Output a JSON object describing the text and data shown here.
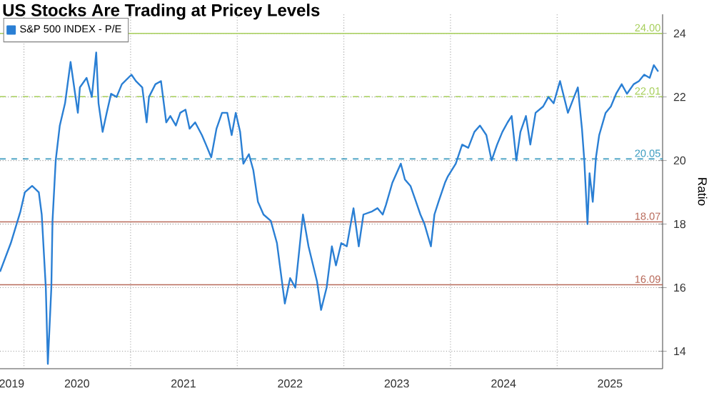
{
  "chart_data": {
    "type": "line",
    "title": "US Stocks Are Trading at Pricey Levels",
    "ylabel": "Ratio",
    "x": [
      "2019-10-11",
      "2019-11-17",
      "2019-12-20",
      "2020-01-04",
      "2020-01-29",
      "2020-02-21",
      "2020-03-02",
      "2020-03-16",
      "2020-03-23",
      "2020-04-04",
      "2020-04-08",
      "2020-04-19",
      "2020-05-03",
      "2020-05-21",
      "2020-06-09",
      "2020-06-23",
      "2020-07-04",
      "2020-07-11",
      "2020-08-03",
      "2020-08-21",
      "2020-09-05",
      "2020-09-13",
      "2020-09-27",
      "2020-10-11",
      "2020-10-26",
      "2020-11-14",
      "2020-12-02",
      "2021-01-04",
      "2021-01-19",
      "2021-02-10",
      "2021-02-25",
      "2021-03-05",
      "2021-03-27",
      "2021-04-15",
      "2021-05-03",
      "2021-05-17",
      "2021-06-05",
      "2021-06-20",
      "2021-07-08",
      "2021-07-22",
      "2021-08-10",
      "2021-09-02",
      "2021-09-16",
      "2021-10-04",
      "2021-10-22",
      "2021-11-10",
      "2021-11-28",
      "2021-12-13",
      "2021-12-27",
      "2022-01-11",
      "2022-01-22",
      "2022-02-10",
      "2022-02-25",
      "2022-03-13",
      "2022-04-01",
      "2022-04-26",
      "2022-05-17",
      "2022-06-13",
      "2022-07-01",
      "2022-07-19",
      "2022-08-14",
      "2022-09-02",
      "2022-10-01",
      "2022-10-15",
      "2022-11-03",
      "2022-11-21",
      "2022-12-05",
      "2022-12-23",
      "2023-01-11",
      "2023-02-03",
      "2023-02-21",
      "2023-03-09",
      "2023-04-08",
      "2023-04-26",
      "2023-05-14",
      "2023-05-25",
      "2023-06-16",
      "2023-07-15",
      "2023-07-29",
      "2023-08-17",
      "2023-09-05",
      "2023-09-20",
      "2023-10-04",
      "2023-10-26",
      "2023-11-07",
      "2023-11-21",
      "2023-12-13",
      "2023-12-23",
      "2024-01-19",
      "2024-02-10",
      "2024-03-02",
      "2024-03-23",
      "2024-04-11",
      "2024-05-03",
      "2024-05-21",
      "2024-06-09",
      "2024-06-27",
      "2024-07-15",
      "2024-07-29",
      "2024-08-14",
      "2024-08-28",
      "2024-09-16",
      "2024-10-01",
      "2024-10-19",
      "2024-11-14",
      "2024-12-02",
      "2024-12-20",
      "2025-01-11",
      "2025-01-19",
      "2025-02-07",
      "2025-02-28",
      "2025-03-13",
      "2025-03-27",
      "2025-04-04",
      "2025-04-15",
      "2025-04-22",
      "2025-05-03",
      "2025-05-14",
      "2025-05-25",
      "2025-06-16",
      "2025-07-04",
      "2025-07-22",
      "2025-08-10",
      "2025-08-28",
      "2025-09-20",
      "2025-10-08",
      "2025-10-26",
      "2025-11-14",
      "2025-11-28",
      "2025-12-13"
    ],
    "series": [
      {
        "name": "S&P 500 INDEX - P/E",
        "color": "#2a7fd4",
        "values": [
          16.5,
          17.4,
          18.4,
          19.0,
          19.2,
          19.0,
          18.3,
          16.0,
          13.6,
          16.0,
          18.1,
          20.0,
          21.1,
          21.8,
          23.1,
          22.2,
          21.5,
          22.3,
          22.6,
          22.0,
          23.4,
          21.8,
          20.9,
          21.5,
          22.1,
          22.0,
          22.4,
          22.7,
          22.5,
          22.3,
          21.2,
          22.0,
          22.4,
          22.5,
          21.2,
          21.4,
          21.1,
          21.5,
          21.6,
          21.0,
          21.2,
          20.8,
          20.5,
          20.1,
          21.0,
          21.5,
          21.5,
          20.8,
          21.5,
          20.9,
          19.9,
          20.2,
          19.7,
          18.7,
          18.3,
          18.1,
          17.4,
          15.5,
          16.3,
          16.0,
          18.3,
          17.3,
          16.2,
          15.3,
          16.0,
          17.3,
          16.7,
          17.4,
          17.3,
          18.5,
          17.3,
          18.3,
          18.4,
          18.5,
          18.3,
          18.6,
          19.3,
          19.9,
          19.4,
          19.2,
          18.7,
          18.3,
          18.0,
          17.3,
          18.3,
          18.7,
          19.3,
          19.5,
          19.9,
          20.5,
          20.4,
          20.9,
          21.1,
          20.8,
          20.0,
          20.5,
          20.9,
          21.2,
          21.4,
          20.0,
          20.9,
          21.4,
          20.5,
          21.5,
          21.7,
          22.0,
          21.8,
          22.5,
          22.2,
          21.5,
          22.0,
          22.3,
          21.0,
          20.0,
          18.0,
          19.6,
          18.7,
          20.1,
          20.8,
          21.5,
          21.7,
          22.1,
          22.4,
          22.1,
          22.4,
          22.5,
          22.7,
          22.6,
          23.0,
          22.8
        ]
      }
    ],
    "xlim": [
      "2019-10-11",
      "2025-12-28"
    ],
    "ylim": [
      13.45,
      24.6
    ],
    "xticks": [
      {
        "value": "2020-01-01",
        "label": null
      },
      {
        "value": "2021-01-01",
        "label": null
      },
      {
        "value": "2022-01-01",
        "label": null
      },
      {
        "value": "2023-01-01",
        "label": null
      },
      {
        "value": "2024-01-01",
        "label": null
      },
      {
        "value": "2025-01-01",
        "label": null
      },
      {
        "value": "2019-11-20",
        "label": "2019"
      },
      {
        "value": "2020-07-01",
        "label": "2020"
      },
      {
        "value": "2021-07-01",
        "label": "2021"
      },
      {
        "value": "2022-07-01",
        "label": "2022"
      },
      {
        "value": "2023-07-01",
        "label": "2023"
      },
      {
        "value": "2024-07-01",
        "label": "2024"
      },
      {
        "value": "2025-07-01",
        "label": "2025"
      }
    ],
    "yticks": [
      14,
      16,
      18,
      20,
      22,
      24
    ],
    "grid": true,
    "legend": "top left",
    "ref_lines": [
      {
        "axis": "y",
        "value": 24.0,
        "label": "24.00",
        "color": "#a6ce5a",
        "line_style": "solid"
      },
      {
        "axis": "y",
        "value": 22.01,
        "label": "22.01",
        "color": "#a6ce5a",
        "line_style": "dashed"
      },
      {
        "axis": "y",
        "value": 20.05,
        "label": "20.05",
        "color": "#3c9cc0",
        "line_style": "dashed"
      },
      {
        "axis": "y",
        "value": 18.07,
        "label": "18.07",
        "color": "#b86a5a",
        "line_style": "solid"
      },
      {
        "axis": "y",
        "value": 16.09,
        "label": "16.09",
        "color": "#b86a5a",
        "line_style": "solid"
      }
    ]
  }
}
